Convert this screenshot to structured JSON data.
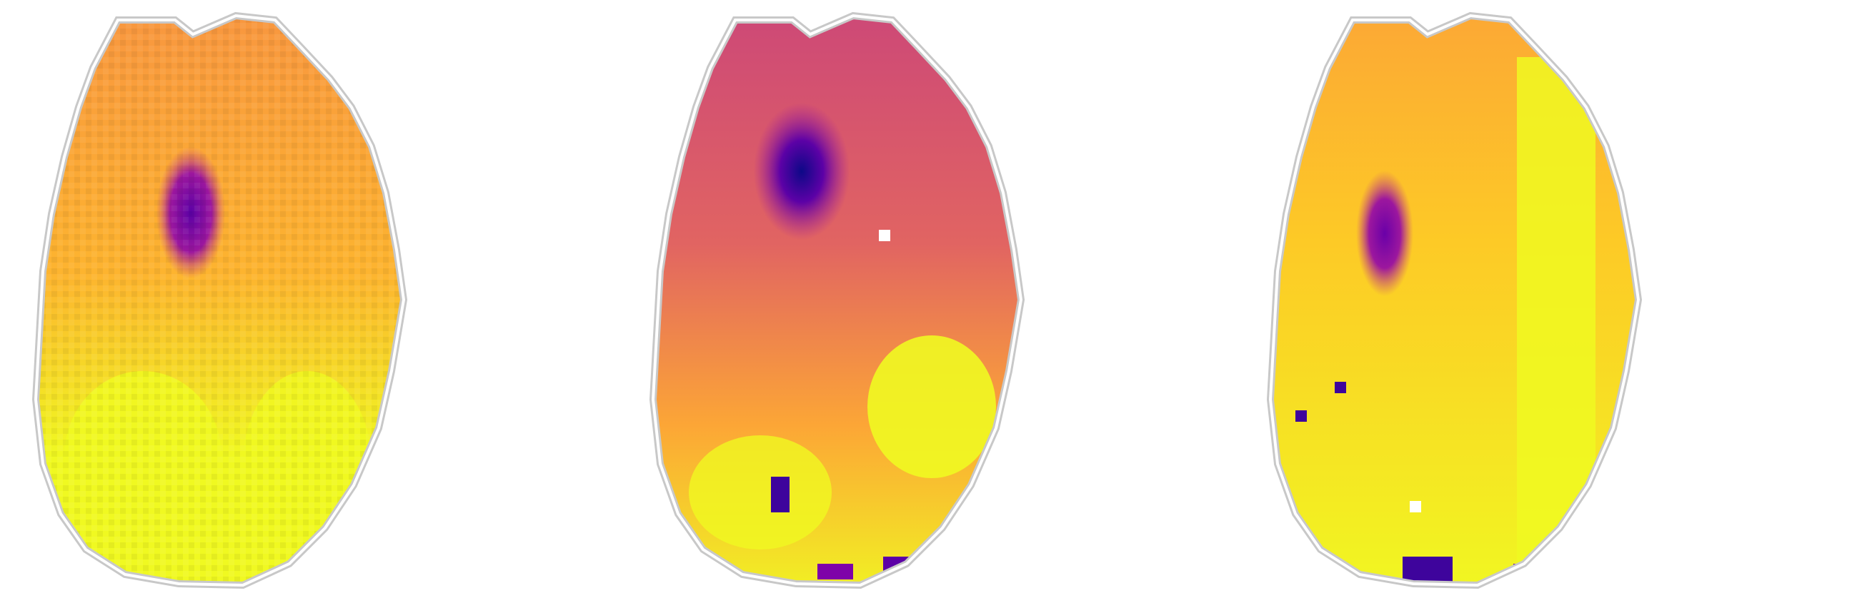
{
  "figure": {
    "colormap": "plasma",
    "panel_count": 3,
    "outline_colors": {
      "outer": "#c8c8c8",
      "inner": "#ffffff"
    },
    "palette": [
      "#0d0887",
      "#5c01a6",
      "#9c179e",
      "#cc4778",
      "#ed7953",
      "#fdb42f",
      "#f0f921"
    ],
    "panels": [
      {
        "id": "slice-1",
        "description_tag": "axial-brain-slice"
      },
      {
        "id": "slice-2",
        "description_tag": "axial-brain-slice"
      },
      {
        "id": "slice-3",
        "description_tag": "axial-brain-slice"
      }
    ]
  }
}
